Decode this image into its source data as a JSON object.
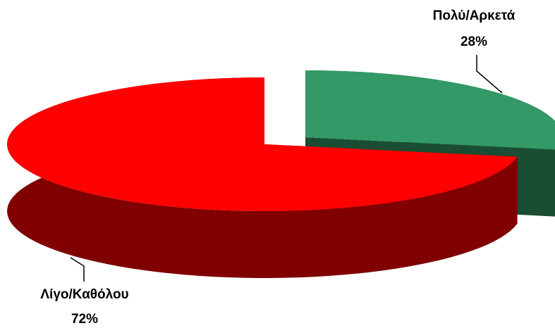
{
  "chart_data": {
    "type": "pie",
    "categories": [
      "Πολύ/Αρκετά",
      "Λίγο/Καθόλου"
    ],
    "values": [
      28,
      72
    ],
    "value_labels": [
      "28%",
      "72%"
    ],
    "colors": [
      "#339966",
      "#ff0000"
    ]
  }
}
